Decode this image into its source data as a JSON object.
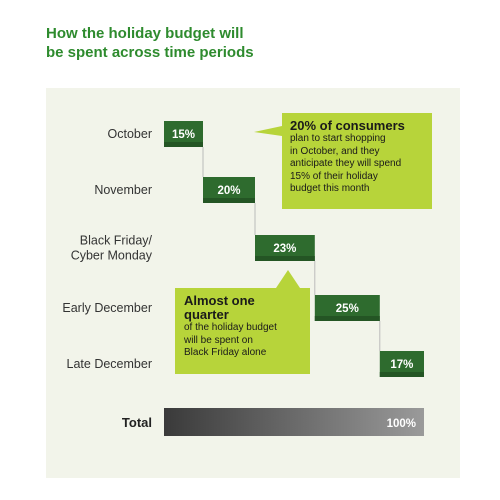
{
  "title": {
    "line1": "How the holiday budget will",
    "line2": "be spent across time periods"
  },
  "chart_data": {
    "type": "bar",
    "categories": [
      "October",
      "November",
      "Black Friday/\nCyber Monday",
      "Early December",
      "Late December"
    ],
    "values": [
      15,
      20,
      23,
      25,
      17
    ],
    "value_labels": [
      "15%",
      "20%",
      "23%",
      "25%",
      "17%"
    ],
    "total_label": "Total",
    "total_value": 100,
    "total_value_label": "100%",
    "colors": {
      "bar": "#2e6b2e",
      "bar_dark": "#245524",
      "total_start": "#3a3a3a",
      "total_end": "#9a9a9a",
      "callout": "#b7d43a",
      "connector": "#bbbbbb"
    }
  },
  "callouts": [
    {
      "head": "20% of consumers",
      "body": "plan to start shopping\nin October, and they\nanticipate they will spend\n15% of their holiday\nbudget this month"
    },
    {
      "head": "Almost\none quarter",
      "body": "of the holiday budget\nwill be spent on\nBlack Friday alone"
    }
  ]
}
